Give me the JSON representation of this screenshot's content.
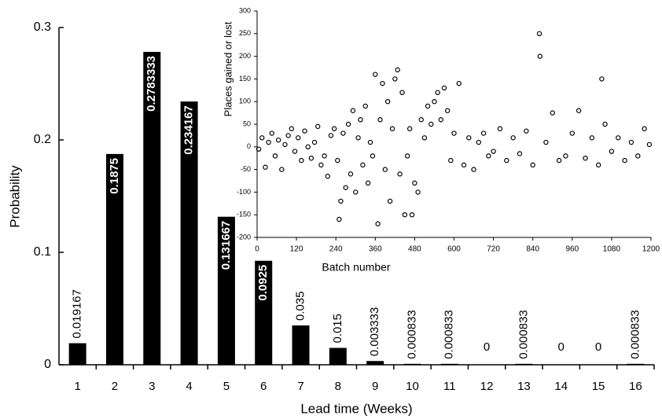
{
  "chart_data": [
    {
      "type": "bar",
      "xlabel": "Lead time (Weeks)",
      "ylabel": "Probability",
      "categories": [
        "1",
        "2",
        "3",
        "4",
        "5",
        "6",
        "7",
        "8",
        "9",
        "10",
        "11",
        "12",
        "13",
        "14",
        "15",
        "16"
      ],
      "values": [
        0.019167,
        0.1875,
        0.2783333,
        0.234167,
        0.131667,
        0.0925,
        0.035,
        0.015,
        0.003333,
        0.000833,
        0.000833,
        0,
        0.000833,
        0,
        0,
        0.000833
      ],
      "color": "#000000",
      "ylim": [
        0,
        0.3
      ],
      "yticks": [
        0,
        0.1,
        0.2,
        0.3
      ]
    },
    {
      "type": "scatter",
      "xlabel": "Batch number",
      "ylabel": "Places gained or lost",
      "color": "#000000",
      "x": [
        5,
        15,
        25,
        35,
        45,
        55,
        65,
        75,
        85,
        95,
        105,
        115,
        125,
        135,
        145,
        155,
        165,
        175,
        185,
        195,
        205,
        215,
        225,
        235,
        245,
        250,
        255,
        262,
        270,
        278,
        285,
        292,
        300,
        308,
        315,
        322,
        330,
        338,
        345,
        352,
        360,
        368,
        375,
        382,
        390,
        398,
        405,
        412,
        420,
        428,
        435,
        442,
        450,
        458,
        465,
        472,
        480,
        490,
        500,
        510,
        520,
        530,
        540,
        550,
        560,
        570,
        580,
        590,
        600,
        615,
        630,
        645,
        660,
        675,
        690,
        705,
        720,
        740,
        760,
        780,
        800,
        820,
        840,
        860,
        862,
        880,
        900,
        920,
        940,
        960,
        980,
        1000,
        1020,
        1040,
        1050,
        1060,
        1080,
        1100,
        1120,
        1140,
        1160,
        1180,
        1195
      ],
      "y": [
        -5,
        20,
        -45,
        10,
        30,
        -20,
        15,
        -50,
        5,
        25,
        40,
        -10,
        20,
        -30,
        35,
        0,
        -25,
        10,
        45,
        -40,
        -20,
        -65,
        25,
        40,
        -30,
        -160,
        -120,
        30,
        -90,
        50,
        -60,
        80,
        -100,
        20,
        60,
        -40,
        90,
        -80,
        10,
        -20,
        160,
        -170,
        60,
        140,
        -50,
        100,
        -120,
        40,
        150,
        170,
        -60,
        120,
        -150,
        -20,
        40,
        -150,
        -80,
        -100,
        60,
        20,
        90,
        50,
        100,
        120,
        60,
        130,
        80,
        -30,
        30,
        140,
        -40,
        20,
        -50,
        10,
        30,
        -20,
        -10,
        40,
        -30,
        20,
        -15,
        35,
        -40,
        250,
        200,
        10,
        75,
        -30,
        -20,
        30,
        80,
        -25,
        20,
        -40,
        150,
        50,
        -10,
        20,
        -30,
        10,
        -20,
        40,
        5
      ],
      "xlim": [
        0,
        1200
      ],
      "xticks": [
        0,
        120,
        240,
        360,
        480,
        600,
        720,
        840,
        960,
        1080,
        1200
      ],
      "ylim": [
        -200,
        300
      ],
      "yticks": [
        -200,
        -150,
        -100,
        -50,
        0,
        50,
        100,
        150,
        200,
        250,
        300
      ]
    }
  ]
}
